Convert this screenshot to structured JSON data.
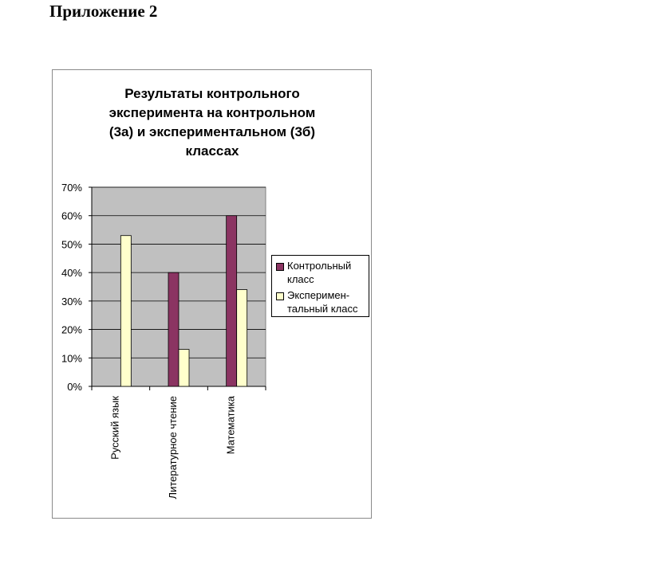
{
  "page": {
    "heading": "Приложение 2"
  },
  "chart_data": {
    "type": "bar",
    "title_lines": [
      "Результаты контрольного",
      "эксперимента на контрольном",
      "(3а) и экспериментальном (3б)",
      "классах"
    ],
    "categories": [
      "Русский язык",
      "Литературное чтение",
      "Математика"
    ],
    "series": [
      {
        "name": "Контрольный класс",
        "values": [
          0,
          40,
          60
        ],
        "color": "#8b3462"
      },
      {
        "name": "Эксперимен-тальный класс",
        "values": [
          53,
          13,
          34
        ],
        "color": "#ffffcc"
      }
    ],
    "legend_lines": [
      [
        "Контрольный",
        "класс"
      ],
      [
        "Эксперимен-",
        "тальный класс"
      ]
    ],
    "ylim": [
      0,
      70
    ],
    "ytick_values": [
      0,
      10,
      20,
      30,
      40,
      50,
      60,
      70
    ],
    "ytick_labels": [
      "0%",
      "10%",
      "20%",
      "30%",
      "40%",
      "50%",
      "60%",
      "70%"
    ],
    "plot_background": "#c0c0c0",
    "grid": true,
    "legend_position": "right"
  }
}
